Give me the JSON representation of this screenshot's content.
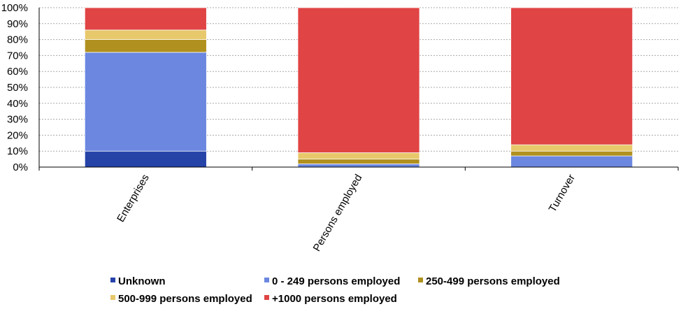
{
  "chart_data": {
    "type": "bar",
    "stacked": true,
    "categories": [
      "Enterprises",
      "Persons employed",
      "Turnover"
    ],
    "series": [
      {
        "name": "Unknown",
        "color": "#2643a8",
        "values": [
          10,
          0,
          0
        ]
      },
      {
        "name": "0 - 249 persons employed",
        "color": "#6b87e0",
        "values": [
          62,
          2,
          7
        ]
      },
      {
        "name": "250-499 persons employed",
        "color": "#b0901e",
        "values": [
          8,
          3,
          3
        ]
      },
      {
        "name": "500-999 persons employed",
        "color": "#e7c86a",
        "values": [
          6,
          4,
          4
        ]
      },
      {
        "name": "+1000 persons employed",
        "color": "#e04444",
        "values": [
          14,
          91,
          86
        ]
      }
    ],
    "y_ticks": [
      "0%",
      "10%",
      "20%",
      "30%",
      "40%",
      "50%",
      "60%",
      "70%",
      "80%",
      "90%",
      "100%"
    ],
    "ylim": [
      0,
      100
    ],
    "grid": true,
    "legend_position": "bottom"
  }
}
